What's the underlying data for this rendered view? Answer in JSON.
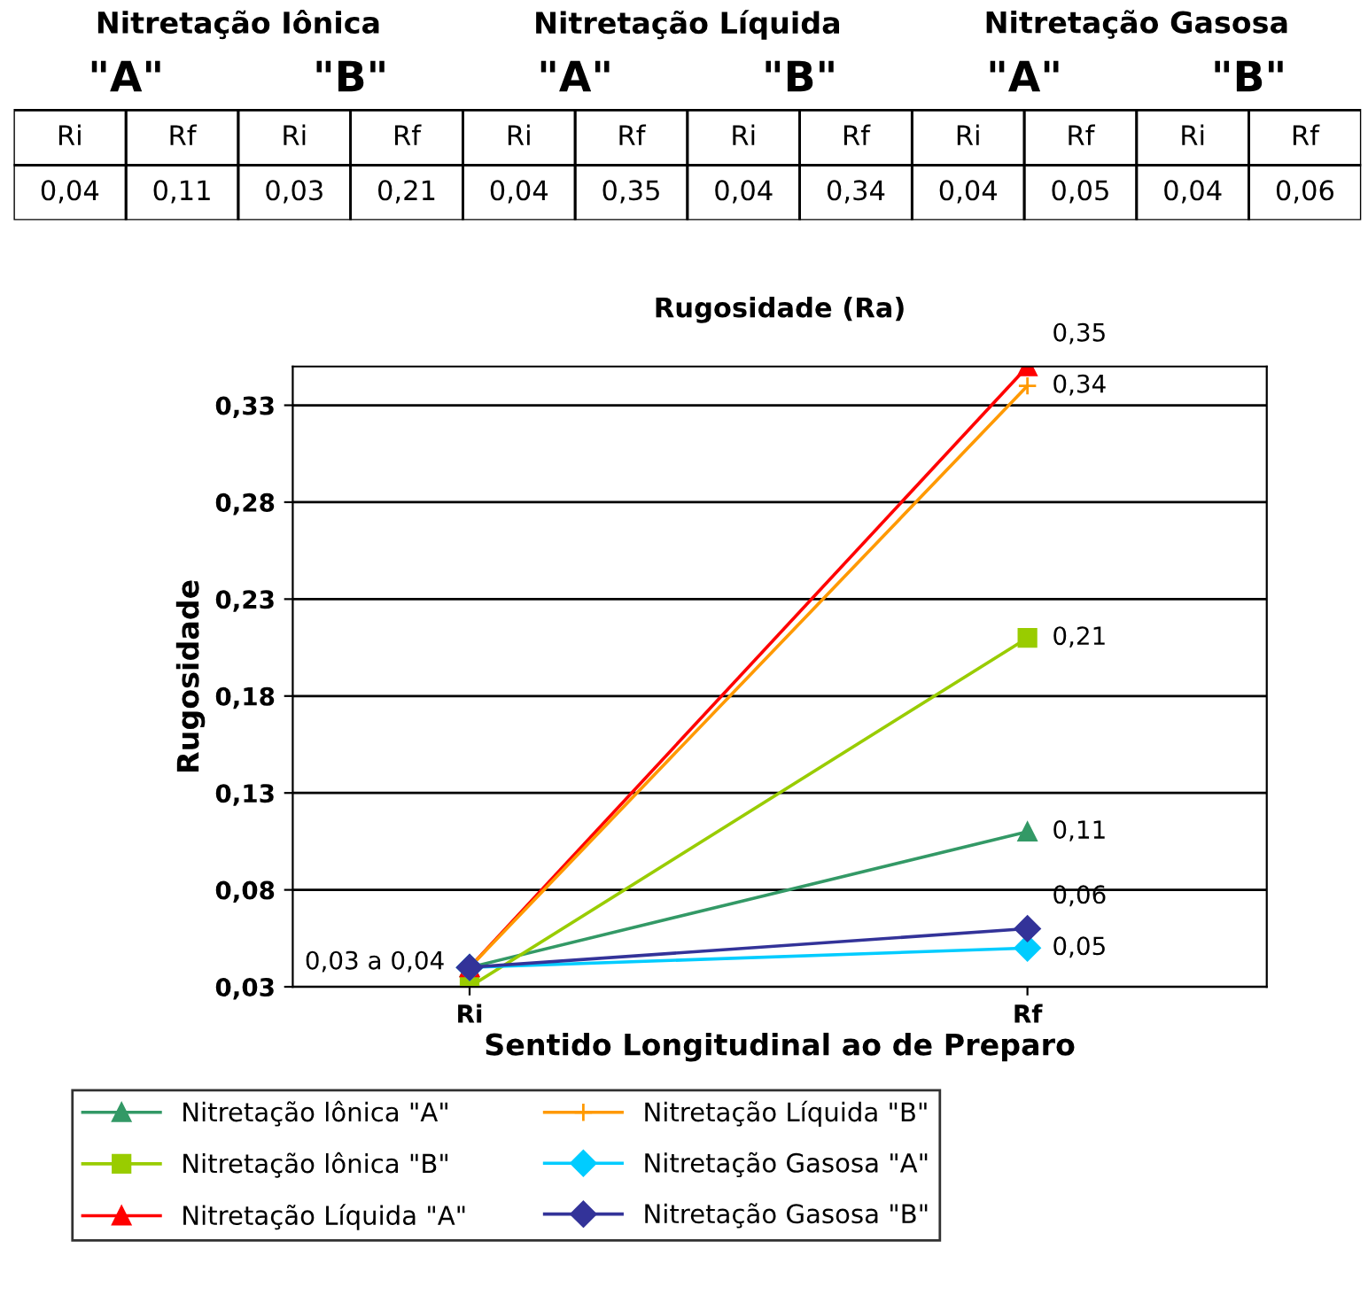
{
  "chart_data": [
    {
      "type": "other",
      "annotations": [
        "Nitretação Iônica",
        "Nitretação Líquida",
        "Nitretação Gasosa",
        "\"A\"",
        "\"B\"",
        "\"A\"",
        "\"B\"",
        "\"A\"",
        "\"B\"",
        "Ri",
        "Rf",
        "Ri",
        "Rf",
        "Ri",
        "Rf",
        "Ri",
        "Rf",
        "Ri",
        "Rf",
        "Ri",
        "Rf",
        "0,04",
        "0,11",
        "0,03",
        "0,21",
        "0,04",
        "0,35",
        "0,04",
        "0,34",
        "0,04",
        "0,05",
        "0,04",
        "0,06"
      ]
    },
    {
      "type": "line",
      "title": "Rugosidade (Ra)",
      "xlabel": "Sentido Longitudinal ao de Preparo",
      "ylabel": "Rugosidade",
      "categories": [
        "Ri",
        "Rf"
      ],
      "series": [
        {
          "name": "Nitretação lônica \"A\"",
          "color": "#339966",
          "marker": "triangle",
          "values": [
            0.04,
            0.11
          ],
          "value_labels": [
            null,
            "0,11"
          ]
        },
        {
          "name": "Nitretação lônica \"B\"",
          "color": "#99cc00",
          "marker": "square",
          "values": [
            0.03,
            0.21
          ],
          "value_labels": [
            null,
            "0,21"
          ]
        },
        {
          "name": "Nitretação Líquida \"A\"",
          "color": "#ff0000",
          "marker": "triangle",
          "values": [
            0.04,
            0.35
          ],
          "value_labels": [
            null,
            "0,35"
          ]
        },
        {
          "name": "Nitretação Líquida \"B\"",
          "color": "#ff9900",
          "marker": "cross",
          "values": [
            0.04,
            0.34
          ],
          "value_labels": [
            null,
            "0,34"
          ]
        },
        {
          "name": "Nitretação Gasosa \"A\"",
          "color": "#00ccff",
          "marker": "diamond",
          "values": [
            0.04,
            0.05
          ],
          "value_labels": [
            null,
            "0,05"
          ]
        },
        {
          "name": "Nitretação Gasosa \"B\"",
          "color": "#333399",
          "marker": "diamond",
          "values": [
            0.04,
            0.06
          ],
          "value_labels": [
            null,
            "0,06"
          ]
        }
      ],
      "annotations": [
        {
          "text": "0,03 a 0,04",
          "x": "Ri",
          "y": 0.04
        }
      ],
      "ylim": [
        0.03,
        0.35
      ],
      "yticks": [
        {
          "value": 0.03,
          "label": "0,03"
        },
        {
          "value": 0.08,
          "label": "0,08"
        },
        {
          "value": 0.13,
          "label": "0,13"
        },
        {
          "value": 0.18,
          "label": "0,18"
        },
        {
          "value": 0.23,
          "label": "0,23"
        },
        {
          "value": 0.28,
          "label": "0,28"
        },
        {
          "value": 0.33,
          "label": "0,33"
        }
      ],
      "grid": "y",
      "legend": "bottom",
      "line_style": "solid"
    }
  ]
}
